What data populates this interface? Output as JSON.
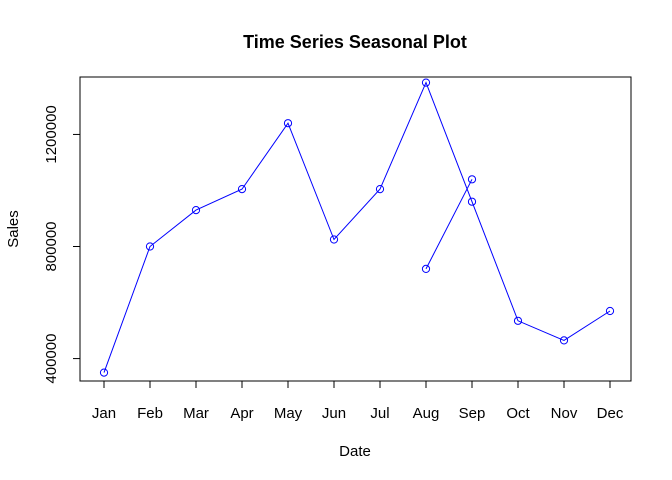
{
  "chart_data": {
    "type": "line",
    "title": "Time Series Seasonal Plot",
    "xlabel": "Date",
    "ylabel": "Sales",
    "categories": [
      "Jan",
      "Feb",
      "Mar",
      "Apr",
      "May",
      "Jun",
      "Jul",
      "Aug",
      "Sep",
      "Oct",
      "Nov",
      "Dec"
    ],
    "series": [
      {
        "x": [
          "Jan",
          "Feb",
          "Mar",
          "Apr",
          "May",
          "Jun",
          "Jul",
          "Aug",
          "Sep",
          "Oct",
          "Nov",
          "Dec"
        ],
        "values": [
          350000,
          800000,
          930000,
          1005000,
          1240000,
          825000,
          1005000,
          1385000,
          960000,
          535000,
          465000,
          570000
        ]
      },
      {
        "x": [
          "Aug",
          "Sep"
        ],
        "values": [
          720000,
          1040000
        ]
      }
    ],
    "yticks": [
      400000,
      800000,
      1200000
    ],
    "ytick_labels": [
      "400000",
      "800000",
      "1200000"
    ],
    "ylim": [
      320000,
      1405000
    ],
    "grid": false,
    "legend": "none",
    "line_color": "#0000ff",
    "marker": "open-circle"
  }
}
